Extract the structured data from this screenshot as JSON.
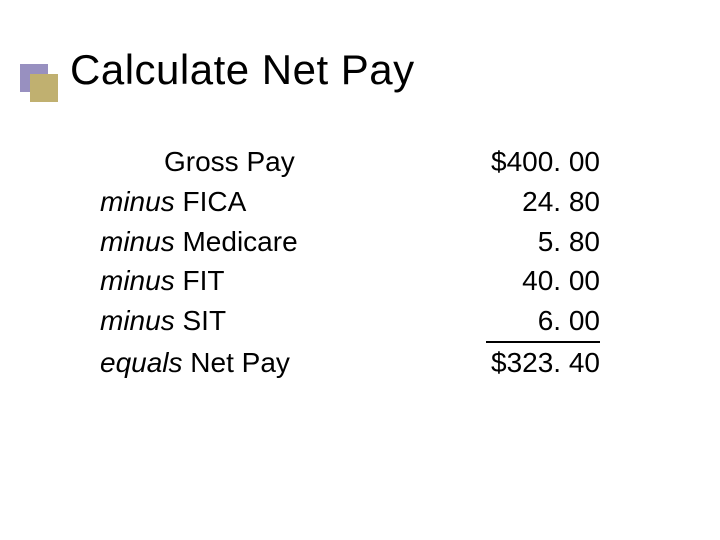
{
  "title": "Calculate Net Pay",
  "colors": {
    "background": "#ffffff",
    "text": "#000000",
    "bullet_front": "#c0b070",
    "bullet_back": "#9890c0"
  },
  "typography": {
    "title_fontsize": 42,
    "body_fontsize": 28,
    "font_family": "Verdana"
  },
  "rows": [
    {
      "prefix": "",
      "indent": true,
      "name": "Gross Pay",
      "value": "$400. 00",
      "underline": false
    },
    {
      "prefix": "minus",
      "indent": false,
      "name": "FICA",
      "value": "24. 80",
      "underline": false
    },
    {
      "prefix": "minus",
      "indent": false,
      "name": "Medicare",
      "value": "5. 80",
      "underline": false
    },
    {
      "prefix": "minus",
      "indent": false,
      "name": "FIT",
      "value": "40. 00",
      "underline": false
    },
    {
      "prefix": "minus",
      "indent": false,
      "name": "SIT",
      "value": "6. 00",
      "underline": true
    },
    {
      "prefix": "equals",
      "indent": false,
      "name": "Net Pay",
      "value": "$323. 40",
      "underline": false
    }
  ]
}
